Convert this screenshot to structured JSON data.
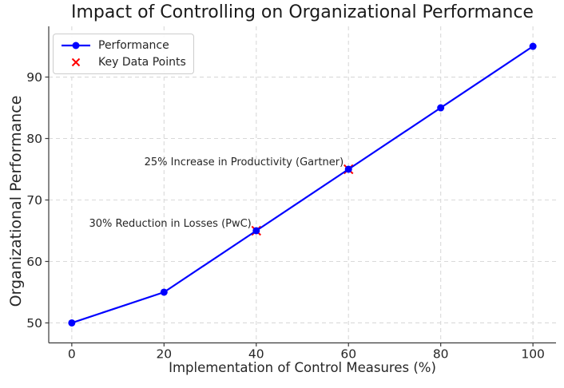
{
  "chart_data": {
    "type": "line",
    "title": "Impact of Controlling on Organizational Performance",
    "xlabel": "Implementation of Control Measures (%)",
    "ylabel": "Organizational Performance",
    "x": [
      0,
      20,
      40,
      60,
      80,
      100
    ],
    "series": [
      {
        "name": "Performance",
        "values": [
          50,
          55,
          65,
          75,
          85,
          95
        ],
        "color": "#0000ff",
        "marker": "circle",
        "line_style": "solid"
      }
    ],
    "key_points": {
      "name": "Key Data Points",
      "color": "#ff0000",
      "marker": "x",
      "points": [
        {
          "x": 40,
          "y": 65,
          "label": "30% Reduction in Losses (PwC)"
        },
        {
          "x": 60,
          "y": 75,
          "label": "25% Increase in Productivity (Gartner)"
        }
      ]
    },
    "xticks": [
      0,
      20,
      40,
      60,
      80,
      100
    ],
    "yticks": [
      50,
      60,
      70,
      80,
      90
    ],
    "xlim": [
      -5,
      105
    ],
    "ylim": [
      46.75,
      98.25
    ],
    "grid": true,
    "grid_style": "dashed",
    "legend": {
      "position": "upper left",
      "entries": [
        {
          "label": "Performance",
          "marker": "line-circle",
          "color": "#0000ff"
        },
        {
          "label": "Key Data Points",
          "marker": "x",
          "color": "#ff0000"
        }
      ]
    },
    "text_color": "#262626",
    "grid_color": "#d9d9d9",
    "spine_color": "#3a3a3a"
  }
}
